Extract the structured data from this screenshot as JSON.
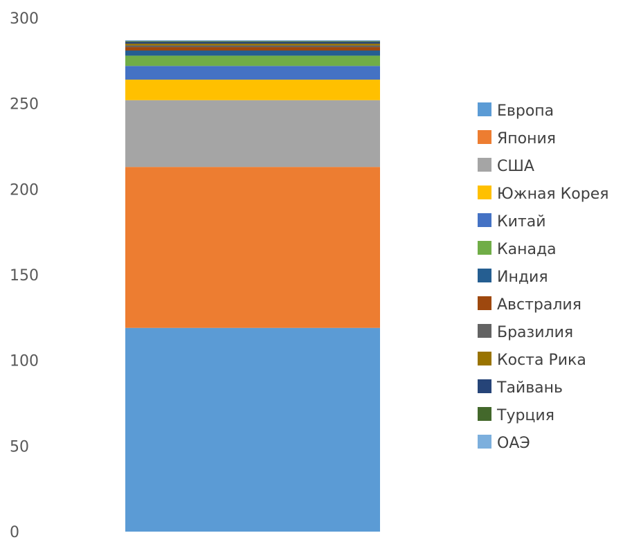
{
  "chart_data": {
    "type": "bar",
    "stacked": true,
    "categories": [
      ""
    ],
    "ylim": [
      0,
      300
    ],
    "yticks": [
      0,
      50,
      100,
      150,
      200,
      250,
      300
    ],
    "grid": false,
    "legend_position": "right",
    "series": [
      {
        "name": "Европа",
        "values": [
          119
        ],
        "color": "#5B9BD5"
      },
      {
        "name": "Япония",
        "values": [
          94
        ],
        "color": "#ED7D31"
      },
      {
        "name": "США",
        "values": [
          39
        ],
        "color": "#A5A5A5"
      },
      {
        "name": "Южная Корея",
        "values": [
          12
        ],
        "color": "#FFC000"
      },
      {
        "name": "Китай",
        "values": [
          8
        ],
        "color": "#4472C4"
      },
      {
        "name": "Канада",
        "values": [
          6
        ],
        "color": "#70AD47"
      },
      {
        "name": "Индия",
        "values": [
          3
        ],
        "color": "#255E91"
      },
      {
        "name": "Австралия",
        "values": [
          2
        ],
        "color": "#9E480E"
      },
      {
        "name": "Бразилия",
        "values": [
          1
        ],
        "color": "#636363"
      },
      {
        "name": "Коста Рика",
        "values": [
          1
        ],
        "color": "#997300"
      },
      {
        "name": "Тайвань",
        "values": [
          1
        ],
        "color": "#264478"
      },
      {
        "name": "Турция",
        "values": [
          0.5
        ],
        "color": "#43682B"
      },
      {
        "name": "ОАЭ",
        "values": [
          0.5
        ],
        "color": "#7CAFDD"
      }
    ]
  }
}
